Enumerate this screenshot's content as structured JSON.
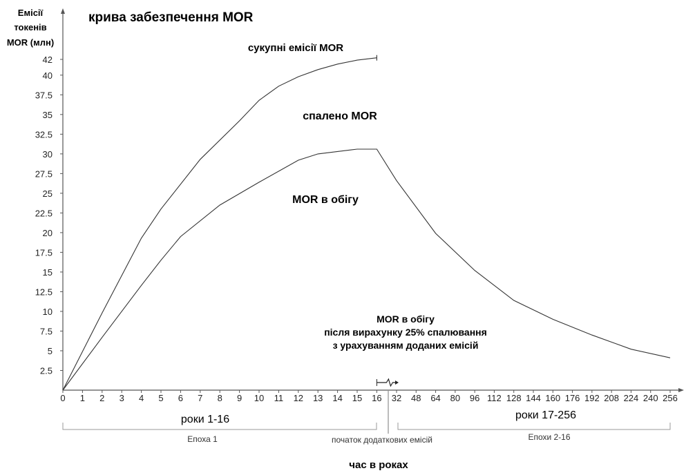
{
  "chart_data": {
    "type": "line",
    "title": "крива забезпечення MOR",
    "ylabel_lines": [
      "Емісії",
      "токенів",
      "MOR (млн)"
    ],
    "xlabel": "час в роках",
    "yticks": [
      "2.5",
      "5",
      "7.5",
      "10",
      "12.5",
      "15",
      "17.5",
      "20",
      "22.5",
      "25",
      "27.5",
      "30",
      "32.5",
      "35",
      "37.5",
      "40",
      "42"
    ],
    "ylim": [
      0,
      44
    ],
    "x_tick_labels": [
      "0",
      "1",
      "2",
      "3",
      "4",
      "5",
      "6",
      "7",
      "8",
      "9",
      "10",
      "11",
      "12",
      "13",
      "14",
      "15",
      "16",
      "32",
      "48",
      "64",
      "80",
      "96",
      "112",
      "128",
      "144",
      "160",
      "176",
      "192",
      "208",
      "224",
      "240",
      "256"
    ],
    "x_scale_note": "years 0-16 linear; 16-256 linear with axis break",
    "series": [
      {
        "name": "сукупні емісії MOR",
        "x": [
          0,
          2,
          4,
          5,
          7,
          9,
          10,
          11,
          12,
          13,
          14,
          15,
          16
        ],
        "y": [
          0,
          9.8,
          19.3,
          23.0,
          29.3,
          34.2,
          36.8,
          38.6,
          39.8,
          40.7,
          41.4,
          41.9,
          42.2
        ]
      },
      {
        "name": "MOR в обігу",
        "x": [
          0,
          2,
          4,
          5,
          6,
          8,
          10,
          12,
          13,
          14,
          15,
          16,
          32,
          64,
          96,
          128,
          160,
          192,
          224,
          256
        ],
        "y": [
          0,
          6.7,
          13.3,
          16.5,
          19.5,
          23.5,
          26.4,
          29.2,
          30.0,
          30.3,
          30.6,
          30.6,
          26.6,
          19.9,
          15.2,
          11.4,
          9.0,
          7.0,
          5.2,
          4.1
        ]
      }
    ],
    "annotations": {
      "burned": "спалено MOR",
      "after_burn_lines": [
        "MOR в обігу",
        "після вирахунку 25% спалювання",
        "з урахуванням доданих емісій"
      ],
      "years_left": "роки 1-16",
      "years_right": "роки 17-256",
      "epoch_left": "Епоха 1",
      "epoch_right": "Епохи 2-16",
      "additional_start": "початок додаткових емісій"
    },
    "colors": {
      "line": "#333333",
      "axis": "#555555",
      "bracket": "#999999"
    }
  }
}
